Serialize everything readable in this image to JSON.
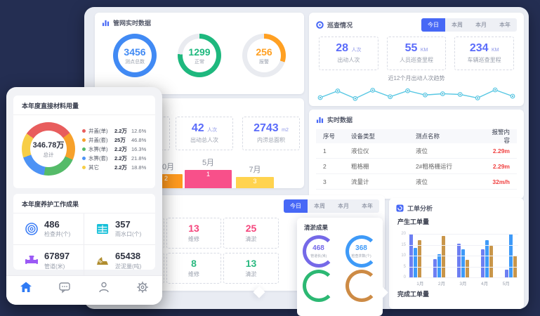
{
  "left_panel": {
    "material_card": {
      "title": "本年度直接材料用量",
      "donut": {
        "total_value": "346.78万",
        "total_label": "总计",
        "start_deg": -55,
        "segments": [
          {
            "label": "井盖(单)",
            "value": "2.2万",
            "pct": "12.6%",
            "color": "#e85d5d",
            "share": 30
          },
          {
            "label": "井盖(套)",
            "value": "25万",
            "pct": "46.8%",
            "color": "#f7a12b",
            "share": 17
          },
          {
            "label": "水箅(单)",
            "value": "2.2万",
            "pct": "16.3%",
            "color": "#55bb69",
            "share": 21
          },
          {
            "label": "水箅(套)",
            "value": "2.2万",
            "pct": "21.8%",
            "color": "#4d93f5",
            "share": 17
          },
          {
            "label": "其它",
            "value": "2.2万",
            "pct": "18.8%",
            "color": "#f7ce46",
            "share": 15
          }
        ]
      }
    },
    "results_card": {
      "title": "本年度养护工作成果",
      "stats": [
        {
          "value": "486",
          "label": "检查井(个)",
          "icon": "inspection-well-icon",
          "color": "#3d7ef5"
        },
        {
          "value": "357",
          "label": "雨水口(个)",
          "icon": "rain-inlet-icon",
          "color": "#17c0d9"
        },
        {
          "value": "67897",
          "label": "管道(米)",
          "icon": "pipe-icon",
          "color": "#9b59f5"
        },
        {
          "value": "65438",
          "label": "淤泥量(吨)",
          "icon": "dredge-icon",
          "color": "#b08d2f"
        }
      ]
    },
    "nav": {
      "items": [
        {
          "icon": "home-icon",
          "active": true
        },
        {
          "icon": "chat-icon",
          "active": false
        },
        {
          "icon": "user-icon",
          "active": false
        },
        {
          "icon": "settings-icon",
          "active": false
        }
      ]
    }
  },
  "dashboard": {
    "network_card": {
      "title": "管网实时数据",
      "gauges": [
        {
          "value": "3456",
          "label": "测点总数",
          "color": "#418af4",
          "pct": 100
        },
        {
          "value": "1299",
          "label": "正常",
          "color": "#1eb87e",
          "pct": 76
        },
        {
          "value": "256",
          "label": "报警",
          "color": "#ffa022",
          "pct": 30
        }
      ]
    },
    "flood_card": {
      "stats": [
        {
          "value": "",
          "unit": "",
          "label": ""
        },
        {
          "value": "42",
          "unit": "人次",
          "label": "出动总人次"
        },
        {
          "value": "2743",
          "unit": "m2",
          "label": "内涝总面积"
        }
      ],
      "podium": [
        {
          "month": "10月",
          "rank": "2",
          "color": "#ff9a1f",
          "height": 20
        },
        {
          "month": "5月",
          "rank": "1",
          "color": "#f8508a",
          "height": 26
        },
        {
          "month": "7月",
          "rank": "3",
          "color": "#ffd34f",
          "height": 16
        }
      ]
    },
    "patrol_card": {
      "title": "巡查情况",
      "tabs": [
        "今日",
        "本周",
        "本月",
        "本年"
      ],
      "stats": [
        {
          "value": "28",
          "unit": "人次",
          "label": "出动人次"
        },
        {
          "value": "55",
          "unit": "KM",
          "label": "人员巡查里程"
        },
        {
          "value": "234",
          "unit": "KM",
          "label": "车辆巡查里程"
        }
      ],
      "trend_title": "近12个月出动人次趋势",
      "trend": {
        "type": "line",
        "color": "#57c7e3",
        "values": [
          40,
          78,
          35,
          82,
          45,
          79,
          55,
          62,
          58,
          38,
          84,
          48
        ]
      }
    },
    "realtime_card": {
      "title": "实时数据",
      "table": {
        "headers": [
          "序号",
          "设备类型",
          "测点名称",
          "报警内容"
        ],
        "rows": [
          [
            "1",
            "液位仪",
            "液位",
            "2.29m"
          ],
          [
            "2",
            "粗格栅",
            "2#粗格栅运行",
            "2.29m"
          ],
          [
            "3",
            "流量计",
            "液位",
            "32m/h"
          ]
        ]
      }
    },
    "maintain_card": {
      "tabs": [
        "今日",
        "本周",
        "本月",
        "本年"
      ],
      "stats": [
        {
          "value": "13",
          "label": "维修",
          "color": "#f5457c"
        },
        {
          "value": "25",
          "label": "清淤",
          "color": "#f5457c"
        },
        {
          "value": "8",
          "label": "维修",
          "color": "#2bb980"
        },
        {
          "value": "13",
          "label": "清淤",
          "color": "#2bb980"
        }
      ]
    },
    "dredge_popover": {
      "title": "清淤成果",
      "gauges": [
        {
          "value": "468",
          "label": "管道长(米)",
          "color": "#7569e8"
        },
        {
          "value": "368",
          "label": "检查井数(个)",
          "color": "#3e9af8"
        },
        {
          "value": "",
          "label": "",
          "color": "#2cb873"
        },
        {
          "value": "",
          "label": "",
          "color": "#cd8b45"
        }
      ]
    },
    "workorder_card": {
      "title": "工单分析",
      "section_created": "产生工单量",
      "section_completed": "完成工单量",
      "chart_data": {
        "type": "bar",
        "categories": [
          "1月",
          "2月",
          "3月",
          "4月",
          "5月"
        ],
        "ymax": 20,
        "yticks": [
          20,
          15,
          10,
          5,
          0
        ],
        "series": [
          {
            "name": "series-1",
            "color": "#6d7ff2",
            "values": [
              20,
              8.5,
              15.5,
              13,
              3.5
            ]
          },
          {
            "name": "series-2",
            "color": "#3e9af8",
            "values": [
              13.5,
              10.5,
              13,
              17,
              20
            ]
          },
          {
            "name": "series-3",
            "color": "#c9964a",
            "values": [
              17,
              19,
              8,
              14.5,
              10
            ]
          }
        ]
      }
    }
  }
}
